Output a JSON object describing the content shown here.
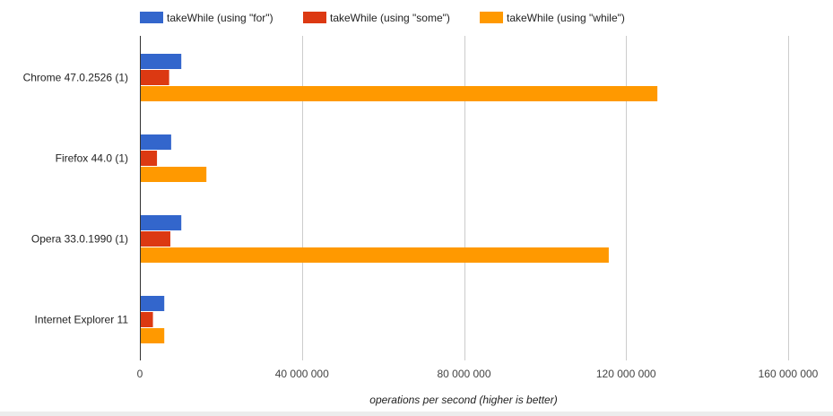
{
  "chart_data": {
    "type": "bar",
    "orientation": "horizontal",
    "title": "",
    "categories": [
      "Chrome 47.0.2526 (1)",
      "Firefox 44.0 (1)",
      "Opera 33.0.1990 (1)",
      "Internet Explorer 11"
    ],
    "series": [
      {
        "name": "takeWhile (using \"for\")",
        "color": "#3366cc",
        "values": [
          10000000,
          7500000,
          10000000,
          5800000
        ]
      },
      {
        "name": "takeWhile (using \"some\")",
        "color": "#dc3912",
        "values": [
          7000000,
          4000000,
          7300000,
          3000000
        ]
      },
      {
        "name": "takeWhile (using \"while\")",
        "color": "#ff9900",
        "values": [
          127500000,
          16200000,
          115500000,
          5800000
        ]
      }
    ],
    "xlabel": "operations per second (higher is better)",
    "ylabel": "",
    "xlim": [
      0,
      160000000
    ],
    "xticks": [
      0,
      40000000,
      80000000,
      120000000,
      160000000
    ],
    "xtick_labels": [
      "0",
      "40 000 000",
      "80 000 000",
      "120 000 000",
      "160 000 000"
    ],
    "grid": true,
    "legend_position": "top"
  }
}
